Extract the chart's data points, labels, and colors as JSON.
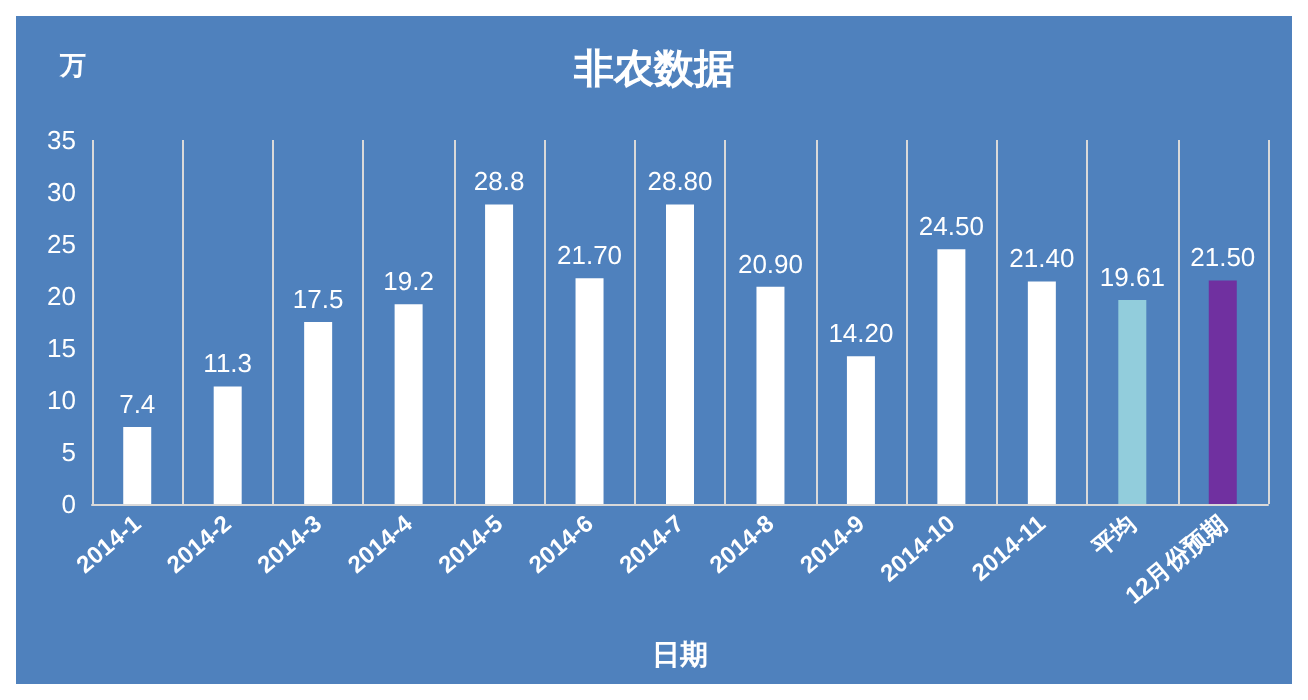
{
  "chart_data": {
    "type": "bar",
    "title": "非农数据",
    "xlabel": "日期",
    "ylabel": "万",
    "categories": [
      "2014-1",
      "2014-2",
      "2014-3",
      "2014-4",
      "2014-5",
      "2014-6",
      "2014-7",
      "2014-8",
      "2014-9",
      "2014-10",
      "2014-11",
      "平均",
      "12月份预期"
    ],
    "values": [
      7.4,
      11.3,
      17.5,
      19.2,
      28.8,
      21.7,
      28.8,
      20.9,
      14.2,
      24.5,
      21.4,
      19.61,
      21.5
    ],
    "value_labels": [
      "7.4",
      "11.3",
      "17.5",
      "19.2",
      "28.8",
      "21.70",
      "28.80",
      "20.90",
      "14.20",
      "24.50",
      "21.40",
      "19.61",
      "21.50"
    ],
    "colors": [
      "#ffffff",
      "#ffffff",
      "#ffffff",
      "#ffffff",
      "#ffffff",
      "#ffffff",
      "#ffffff",
      "#ffffff",
      "#ffffff",
      "#ffffff",
      "#ffffff",
      "#92cddc",
      "#7030a0"
    ],
    "ylim": [
      0,
      35
    ],
    "yticks": [
      0,
      5,
      10,
      15,
      20,
      25,
      30,
      35
    ],
    "grid": "x"
  }
}
